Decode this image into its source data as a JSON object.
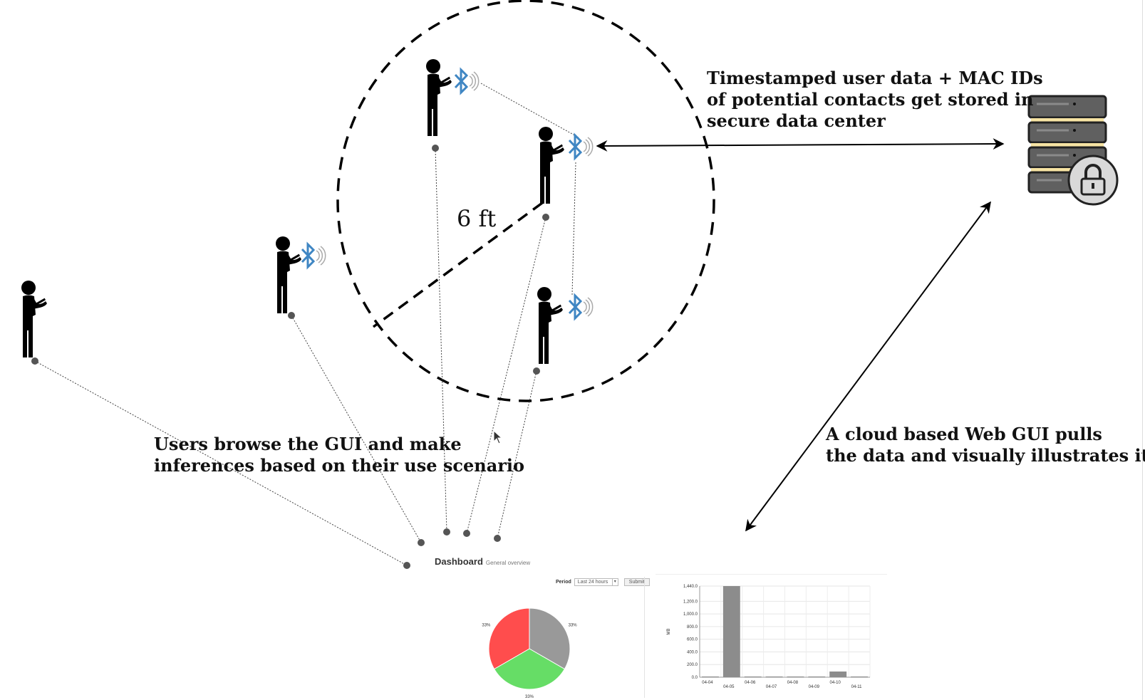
{
  "labels": {
    "storage": "Timestamped user data + MAC IDs\nof potential contacts get stored in\nsecure data center",
    "cloud": "A cloud based Web GUI pulls\nthe data and visually illustrates it",
    "users": "Users browse the GUI and make\ninferences based on their use scenario",
    "distance": "6 ft"
  },
  "dashboard": {
    "title": "Dashboard",
    "subtitle": "General overview",
    "period_label": "Period",
    "period_value": "Last 24 hours",
    "submit_label": "Submit"
  },
  "chart_data": [
    {
      "type": "pie",
      "labels": [
        "33%",
        "33%",
        "33%"
      ],
      "values": [
        33,
        33,
        33
      ],
      "colors": [
        "#999999",
        "#66dd66",
        "#ff4d4d"
      ]
    },
    {
      "type": "bar",
      "categories": [
        "04-04",
        "04-05",
        "04-06",
        "04-07",
        "04-08",
        "04-09",
        "04-10",
        "04-11"
      ],
      "values": [
        0,
        1440,
        0,
        0,
        0,
        0,
        90,
        0
      ],
      "ylabel": "MB",
      "yticks": [
        "0.0",
        "200.0",
        "400.0",
        "600.0",
        "800.0",
        "1,000.0",
        "1,200.0",
        "1,440.0"
      ],
      "ylim": [
        0,
        1440
      ],
      "color": "#8c8c8c",
      "grid": true
    }
  ],
  "colors": {
    "bluetooth": "#3f86c3",
    "ink": "#000000",
    "server_body": "#606060",
    "server_stripe": "#f6e3a3"
  },
  "icons": [
    "person-icon",
    "bluetooth-icon",
    "server-lock-icon"
  ]
}
